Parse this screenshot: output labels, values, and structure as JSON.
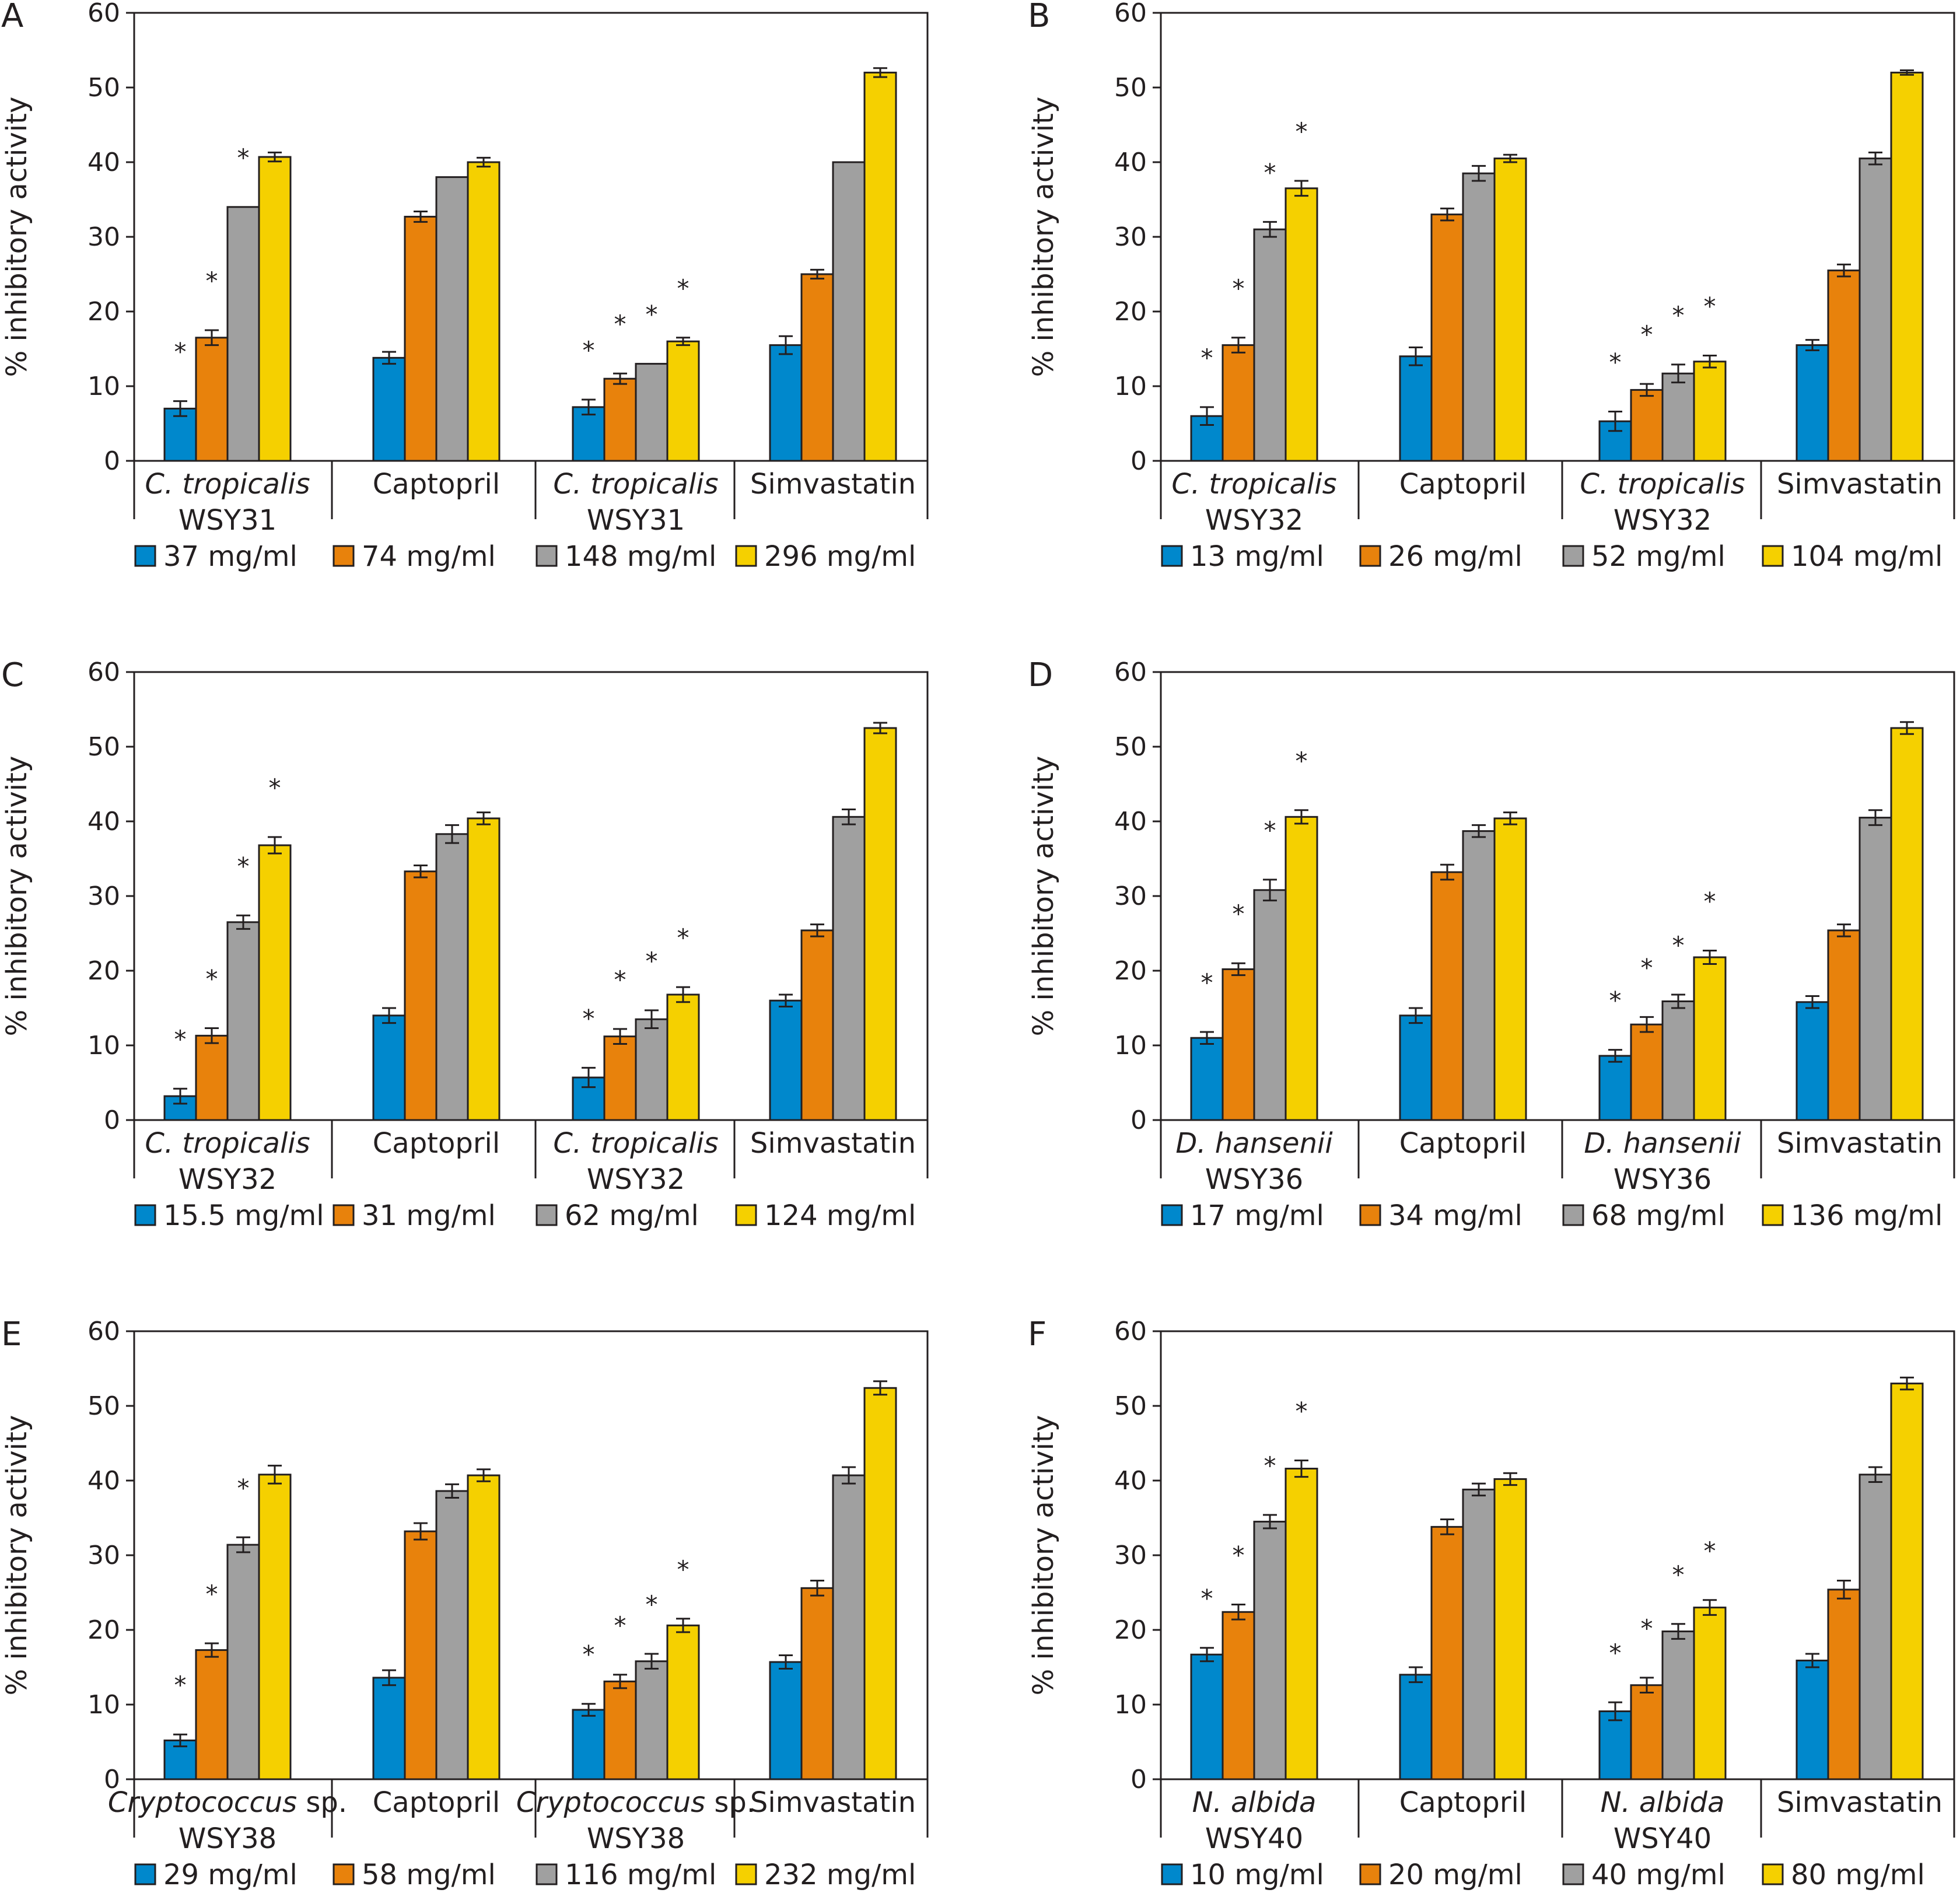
{
  "series_colors": [
    "#0088cc",
    "#e8820c",
    "#a0a0a0",
    "#f5d000"
  ],
  "ylabel_default": "% inhibitory activity",
  "chart_data": [
    {
      "panel": "A",
      "type": "bar",
      "ylabel": "% inhibitory activity",
      "ylim": [
        0,
        60
      ],
      "yticks": [
        "0",
        "10",
        "20",
        "30",
        "40",
        "50",
        "60"
      ],
      "categories": [
        {
          "line1": "C. tropicalis",
          "italic": true,
          "line2": "WSY31"
        },
        {
          "line1": "Captopril",
          "italic": false,
          "line2": ""
        },
        {
          "line1": "C. tropicalis",
          "italic": true,
          "line2": "WSY31"
        },
        {
          "line1": "Simvastatin",
          "italic": false,
          "line2": ""
        }
      ],
      "series": [
        {
          "name": "37 mg/ml",
          "values": [
            7,
            13.8,
            7.2,
            15.5
          ],
          "errors": [
            1.0,
            0.8,
            1.0,
            1.2
          ]
        },
        {
          "name": "74 mg/ml",
          "values": [
            16.5,
            32.7,
            11,
            25
          ],
          "errors": [
            1.0,
            0.7,
            0.7,
            0.6
          ]
        },
        {
          "name": "148 mg/ml",
          "values": [
            34,
            38,
            13,
            40
          ],
          "errors": [
            0,
            0,
            0,
            0
          ]
        },
        {
          "name": "296 mg/ml",
          "values": [
            40.7,
            40,
            16,
            52
          ],
          "errors": [
            0.6,
            0.6,
            0.5,
            0.6
          ]
        }
      ],
      "stars": [
        [
          true,
          false,
          true,
          false
        ],
        [
          true,
          false,
          true,
          false
        ],
        [
          true,
          false,
          true,
          false
        ],
        [
          false,
          false,
          true,
          false
        ]
      ]
    },
    {
      "panel": "B",
      "type": "bar",
      "ylabel": "% inhibitory activity",
      "ylim": [
        0,
        60
      ],
      "yticks": [
        "0",
        "10",
        "20",
        "30",
        "40",
        "50",
        "60"
      ],
      "categories": [
        {
          "line1": "C. tropicalis",
          "italic": true,
          "line2": "WSY32"
        },
        {
          "line1": "Captopril",
          "italic": false,
          "line2": ""
        },
        {
          "line1": "C. tropicalis",
          "italic": true,
          "line2": "WSY32"
        },
        {
          "line1": "Simvastatin",
          "italic": false,
          "line2": ""
        }
      ],
      "series": [
        {
          "name": "13 mg/ml",
          "values": [
            6,
            14,
            5.3,
            15.5
          ],
          "errors": [
            1.2,
            1.2,
            1.3,
            0.7
          ]
        },
        {
          "name": "26 mg/ml",
          "values": [
            15.5,
            33,
            9.5,
            25.5
          ],
          "errors": [
            1.0,
            0.8,
            0.8,
            0.8
          ]
        },
        {
          "name": "52 mg/ml",
          "values": [
            31,
            38.5,
            11.7,
            40.5
          ],
          "errors": [
            1.0,
            1.0,
            1.2,
            0.8
          ]
        },
        {
          "name": "104 mg/ml",
          "values": [
            36.5,
            40.5,
            13.3,
            52
          ],
          "errors": [
            1.0,
            0.5,
            0.8,
            0.3
          ]
        }
      ],
      "stars": [
        [
          true,
          false,
          true,
          false
        ],
        [
          true,
          false,
          true,
          false
        ],
        [
          true,
          false,
          true,
          false
        ],
        [
          true,
          false,
          true,
          false
        ]
      ]
    },
    {
      "panel": "C",
      "type": "bar",
      "ylabel": "% inhibitory activity",
      "ylim": [
        0,
        60
      ],
      "yticks": [
        "0",
        "10",
        "20",
        "30",
        "40",
        "50",
        "60"
      ],
      "categories": [
        {
          "line1": "C. tropicalis",
          "italic": true,
          "line2": "WSY32"
        },
        {
          "line1": "Captopril",
          "italic": false,
          "line2": ""
        },
        {
          "line1": "C. tropicalis",
          "italic": true,
          "line2": "WSY32"
        },
        {
          "line1": "Simvastatin",
          "italic": false,
          "line2": ""
        }
      ],
      "series": [
        {
          "name": "15.5 mg/ml",
          "values": [
            3.2,
            14,
            5.7,
            16
          ],
          "errors": [
            1.0,
            1.0,
            1.3,
            0.8
          ]
        },
        {
          "name": "31 mg/ml",
          "values": [
            11.3,
            33.3,
            11.2,
            25.4
          ],
          "errors": [
            1.0,
            0.8,
            1.0,
            0.8
          ]
        },
        {
          "name": "62 mg/ml",
          "values": [
            26.5,
            38.3,
            13.5,
            40.6
          ],
          "errors": [
            0.9,
            1.2,
            1.2,
            1.0
          ]
        },
        {
          "name": "124 mg/ml",
          "values": [
            36.8,
            40.4,
            16.8,
            52.5
          ],
          "errors": [
            1.1,
            0.8,
            1.0,
            0.7
          ]
        }
      ],
      "stars": [
        [
          true,
          false,
          true,
          false
        ],
        [
          true,
          false,
          true,
          false
        ],
        [
          true,
          false,
          true,
          false
        ],
        [
          true,
          false,
          true,
          false
        ]
      ]
    },
    {
      "panel": "D",
      "type": "bar",
      "ylabel": "% inhibitory activity",
      "ylim": [
        0,
        60
      ],
      "yticks": [
        "0",
        "10",
        "20",
        "30",
        "40",
        "50",
        "60"
      ],
      "categories": [
        {
          "line1": "D. hansenii",
          "italic": true,
          "line2": "WSY36"
        },
        {
          "line1": "Captopril",
          "italic": false,
          "line2": ""
        },
        {
          "line1": "D. hansenii",
          "italic": true,
          "line2": "WSY36"
        },
        {
          "line1": "Simvastatin",
          "italic": false,
          "line2": ""
        }
      ],
      "series": [
        {
          "name": "17 mg/ml",
          "values": [
            11,
            14,
            8.6,
            15.8
          ],
          "errors": [
            0.8,
            1.0,
            0.8,
            0.8
          ]
        },
        {
          "name": "34 mg/ml",
          "values": [
            20.2,
            33.2,
            12.8,
            25.4
          ],
          "errors": [
            0.8,
            1.0,
            1.0,
            0.8
          ]
        },
        {
          "name": "68 mg/ml",
          "values": [
            30.8,
            38.7,
            15.9,
            40.5
          ],
          "errors": [
            1.4,
            0.8,
            0.9,
            1.0
          ]
        },
        {
          "name": "136 mg/ml",
          "values": [
            40.6,
            40.4,
            21.8,
            52.5
          ],
          "errors": [
            0.9,
            0.8,
            0.9,
            0.8
          ]
        }
      ],
      "stars": [
        [
          true,
          false,
          true,
          false
        ],
        [
          true,
          false,
          true,
          false
        ],
        [
          true,
          false,
          true,
          false
        ],
        [
          true,
          false,
          true,
          false
        ]
      ]
    },
    {
      "panel": "E",
      "type": "bar",
      "ylabel": "% inhibitory activity",
      "ylim": [
        0,
        60
      ],
      "yticks": [
        "0",
        "10",
        "20",
        "30",
        "40",
        "50",
        "60"
      ],
      "categories": [
        {
          "line1": "Cryptococcus",
          "italic": true,
          "suffix": " sp.",
          "line2": "WSY38"
        },
        {
          "line1": "Captopril",
          "italic": false,
          "line2": ""
        },
        {
          "line1": "Cryptococcus",
          "italic": true,
          "suffix": " sp.",
          "line2": "WSY38"
        },
        {
          "line1": "Simvastatin",
          "italic": false,
          "line2": ""
        }
      ],
      "series": [
        {
          "name": "29 mg/ml",
          "values": [
            5.2,
            13.6,
            9.3,
            15.7
          ],
          "errors": [
            0.8,
            1.0,
            0.8,
            0.9
          ]
        },
        {
          "name": "58 mg/ml",
          "values": [
            17.3,
            33.2,
            13.1,
            25.6
          ],
          "errors": [
            0.9,
            1.1,
            0.9,
            1.0
          ]
        },
        {
          "name": "116 mg/ml",
          "values": [
            31.4,
            38.6,
            15.8,
            40.7
          ],
          "errors": [
            1.0,
            0.9,
            1.0,
            1.1
          ]
        },
        {
          "name": "232 mg/ml",
          "values": [
            40.8,
            40.7,
            20.6,
            52.4
          ],
          "errors": [
            1.2,
            0.8,
            0.9,
            0.9
          ]
        }
      ],
      "stars": [
        [
          true,
          false,
          true,
          false
        ],
        [
          true,
          false,
          true,
          false
        ],
        [
          true,
          false,
          true,
          false
        ],
        [
          false,
          false,
          true,
          false
        ]
      ]
    },
    {
      "panel": "F",
      "type": "bar",
      "ylabel": "% inhibitory activity",
      "ylim": [
        0,
        60
      ],
      "yticks": [
        "0",
        "10",
        "20",
        "30",
        "40",
        "50",
        "60"
      ],
      "categories": [
        {
          "line1": "N. albida",
          "italic": true,
          "line2": "WSY40"
        },
        {
          "line1": "Captopril",
          "italic": false,
          "line2": ""
        },
        {
          "line1": "N. albida",
          "italic": true,
          "line2": "WSY40"
        },
        {
          "line1": "Simvastatin",
          "italic": false,
          "line2": ""
        }
      ],
      "series": [
        {
          "name": "10 mg/ml",
          "values": [
            16.7,
            14,
            9.1,
            15.9
          ],
          "errors": [
            0.9,
            1.0,
            1.2,
            0.9
          ]
        },
        {
          "name": "20 mg/ml",
          "values": [
            22.4,
            33.8,
            12.6,
            25.4
          ],
          "errors": [
            1.0,
            1.0,
            1.0,
            1.2
          ]
        },
        {
          "name": "40 mg/ml",
          "values": [
            34.5,
            38.8,
            19.8,
            40.8
          ],
          "errors": [
            0.9,
            0.8,
            1.0,
            1.0
          ]
        },
        {
          "name": "80 mg/ml",
          "values": [
            41.6,
            40.2,
            23.0,
            53.0
          ],
          "errors": [
            1.1,
            0.8,
            1.0,
            0.8
          ]
        }
      ],
      "stars": [
        [
          true,
          false,
          true,
          false
        ],
        [
          true,
          false,
          true,
          false
        ],
        [
          true,
          false,
          true,
          false
        ],
        [
          true,
          false,
          true,
          false
        ]
      ]
    }
  ]
}
